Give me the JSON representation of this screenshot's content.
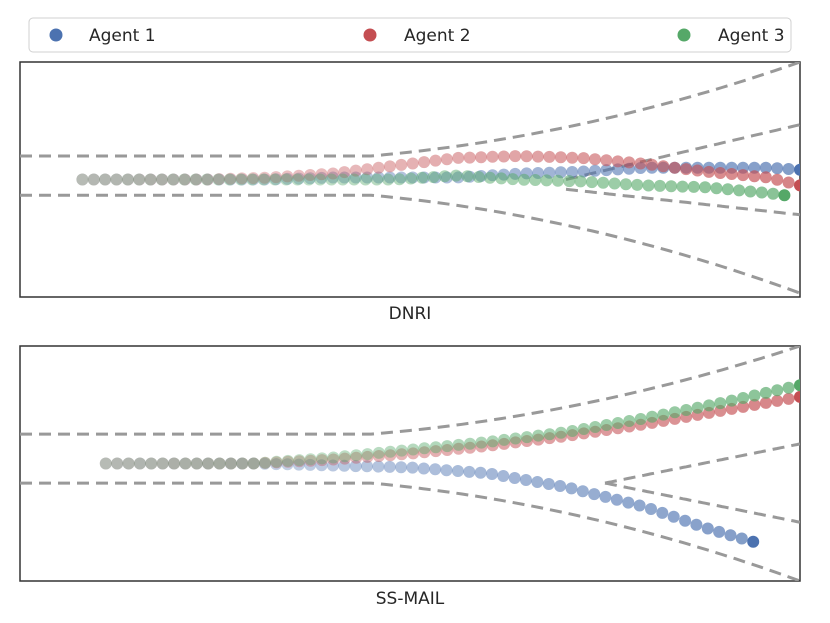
{
  "legend": {
    "entries": [
      {
        "name": "Agent 1",
        "color": "#4c72b0"
      },
      {
        "name": "Agent 2",
        "color": "#c44e52"
      },
      {
        "name": "Agent 3",
        "color": "#55a868"
      }
    ],
    "placement": "top"
  },
  "chart_data": [
    {
      "type": "scatter",
      "caption": "DNRI",
      "xlim": [
        0,
        100
      ],
      "ylim": [
        -6,
        6
      ],
      "grid": false,
      "boundaries": [
        {
          "x": [
            0,
            45,
            100
          ],
          "y": [
            1.2,
            1.2,
            6.0
          ]
        },
        {
          "x": [
            0,
            45,
            100
          ],
          "y": [
            -0.8,
            -0.8,
            -5.8
          ]
        },
        {
          "x": [
            70,
            100
          ],
          "y": [
            0.0,
            2.8
          ]
        },
        {
          "x": [
            70,
            100
          ],
          "y": [
            -0.5,
            -1.8
          ]
        }
      ],
      "series": [
        {
          "name": "Agent 1",
          "color": "#4c72b0",
          "x": [
            8,
            16,
            24,
            32,
            40,
            48,
            56,
            64,
            72,
            80,
            88,
            96,
            100
          ],
          "y": [
            0.0,
            0.0,
            0.0,
            0.0,
            0.1,
            0.1,
            0.1,
            0.3,
            0.4,
            0.6,
            0.6,
            0.6,
            0.5
          ]
        },
        {
          "name": "Agent 2",
          "color": "#c44e52",
          "x": [
            8,
            16,
            24,
            32,
            40,
            48,
            56,
            64,
            72,
            80,
            88,
            96,
            100
          ],
          "y": [
            0.0,
            0.0,
            0.0,
            0.1,
            0.3,
            0.7,
            1.1,
            1.2,
            1.1,
            0.8,
            0.4,
            0.1,
            -0.3
          ]
        },
        {
          "name": "Agent 3",
          "color": "#55a868",
          "x": [
            8,
            16,
            24,
            32,
            40,
            48,
            56,
            64,
            72,
            80,
            88,
            96,
            98
          ],
          "y": [
            0.0,
            0.0,
            0.0,
            0.0,
            0.0,
            0.0,
            0.2,
            0.0,
            -0.1,
            -0.3,
            -0.4,
            -0.7,
            -0.8
          ]
        }
      ]
    },
    {
      "type": "scatter",
      "caption": "SS-MAIL",
      "xlim": [
        0,
        100
      ],
      "ylim": [
        -6,
        6
      ],
      "grid": false,
      "boundaries": [
        {
          "x": [
            0,
            45,
            100
          ],
          "y": [
            1.5,
            1.5,
            6.0
          ]
        },
        {
          "x": [
            0,
            45,
            100
          ],
          "y": [
            -1.0,
            -1.0,
            -6.0
          ]
        },
        {
          "x": [
            75,
            100
          ],
          "y": [
            -1.0,
            1.0
          ]
        },
        {
          "x": [
            75,
            100
          ],
          "y": [
            -1.0,
            -3.0
          ]
        }
      ],
      "series": [
        {
          "name": "Agent 1",
          "color": "#4c72b0",
          "x": [
            11,
            20,
            30,
            40,
            50,
            60,
            70,
            80,
            88,
            94
          ],
          "y": [
            0.0,
            0.0,
            0.0,
            -0.1,
            -0.2,
            -0.5,
            -1.2,
            -2.2,
            -3.3,
            -4.0
          ]
        },
        {
          "name": "Agent 2",
          "color": "#c44e52",
          "x": [
            11,
            20,
            30,
            40,
            50,
            60,
            70,
            80,
            90,
            100
          ],
          "y": [
            0.0,
            0.0,
            0.0,
            0.2,
            0.5,
            0.9,
            1.4,
            2.0,
            2.7,
            3.4
          ]
        },
        {
          "name": "Agent 3",
          "color": "#55a868",
          "x": [
            11,
            20,
            30,
            40,
            50,
            60,
            70,
            80,
            90,
            100
          ],
          "y": [
            0.0,
            0.0,
            0.0,
            0.3,
            0.7,
            1.1,
            1.6,
            2.3,
            3.1,
            4.0
          ]
        }
      ]
    }
  ]
}
